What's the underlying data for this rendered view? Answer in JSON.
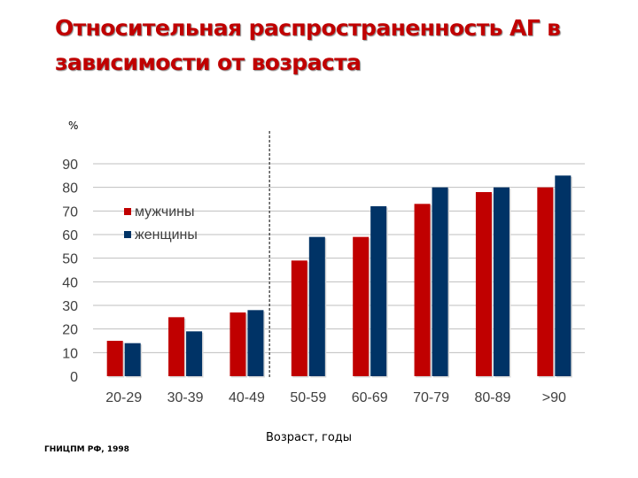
{
  "title": "Относительная распространенность АГ в зависимости от возраста",
  "source": "ГНИЦПМ РФ, 1998",
  "chart_data": {
    "type": "bar",
    "categories": [
      "20-29",
      "30-39",
      "40-49",
      "50-59",
      "60-69",
      "70-79",
      "80-89",
      ">90"
    ],
    "series": [
      {
        "name": "мужчины",
        "values": [
          15,
          25,
          27,
          49,
          59,
          73,
          78,
          80
        ],
        "color": "#c00000"
      },
      {
        "name": "женщины",
        "values": [
          14,
          19,
          28,
          59,
          72,
          80,
          80,
          85
        ],
        "color": "#003366"
      }
    ],
    "ylabel": "%",
    "xlabel": "Возраст, годы",
    "ylim": [
      0,
      90
    ],
    "yticks": [
      0,
      10,
      20,
      30,
      40,
      50,
      60,
      70,
      80,
      90
    ],
    "grid": true,
    "legend": "top-left",
    "annotation": "dashed vertical line between 40-49 and 50-59"
  }
}
